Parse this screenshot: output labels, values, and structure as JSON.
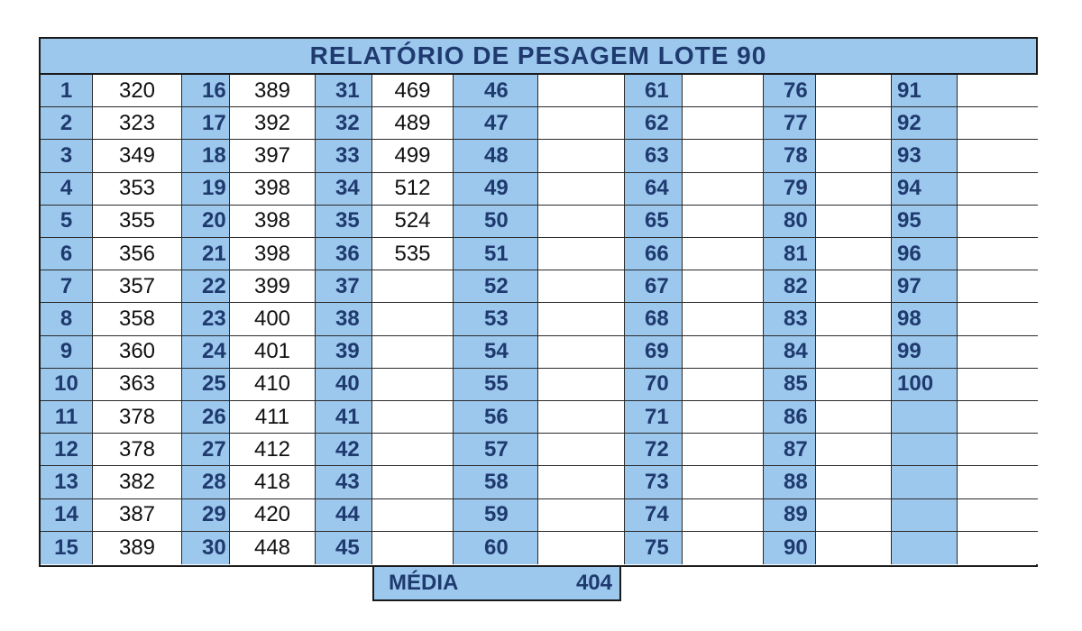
{
  "title": "RELATÓRIO DE PESAGEM LOTE 90",
  "colors": {
    "header_blue": "#9cc8ee",
    "label_navy": "#1f3a6e",
    "border": "#1a1a1a"
  },
  "groups": [
    {
      "numbers": [
        "1",
        "2",
        "3",
        "4",
        "5",
        "6",
        "7",
        "8",
        "9",
        "10",
        "11",
        "12",
        "13",
        "14",
        "15"
      ],
      "values": [
        "320",
        "323",
        "349",
        "353",
        "355",
        "356",
        "357",
        "358",
        "360",
        "363",
        "378",
        "378",
        "382",
        "387",
        "389"
      ]
    },
    {
      "numbers": [
        "16",
        "17",
        "18",
        "19",
        "20",
        "21",
        "22",
        "23",
        "24",
        "25",
        "26",
        "27",
        "28",
        "29",
        "30"
      ],
      "values": [
        "389",
        "392",
        "397",
        "398",
        "398",
        "398",
        "399",
        "400",
        "401",
        "410",
        "411",
        "412",
        "418",
        "420",
        "448"
      ]
    },
    {
      "numbers": [
        "31",
        "32",
        "33",
        "34",
        "35",
        "36",
        "37",
        "38",
        "39",
        "40",
        "41",
        "42",
        "43",
        "44",
        "45"
      ],
      "values": [
        "469",
        "489",
        "499",
        "512",
        "524",
        "535",
        "",
        "",
        "",
        "",
        "",
        "",
        "",
        "",
        ""
      ]
    },
    {
      "numbers": [
        "46",
        "47",
        "48",
        "49",
        "50",
        "51",
        "52",
        "53",
        "54",
        "55",
        "56",
        "57",
        "58",
        "59",
        "60"
      ],
      "values": [
        "",
        "",
        "",
        "",
        "",
        "",
        "",
        "",
        "",
        "",
        "",
        "",
        "",
        "",
        ""
      ]
    },
    {
      "numbers": [
        "61",
        "62",
        "63",
        "64",
        "65",
        "66",
        "67",
        "68",
        "69",
        "70",
        "71",
        "72",
        "73",
        "74",
        "75"
      ],
      "values": [
        "",
        "",
        "",
        "",
        "",
        "",
        "",
        "",
        "",
        "",
        "",
        "",
        "",
        "",
        ""
      ]
    },
    {
      "numbers": [
        "76",
        "77",
        "78",
        "79",
        "80",
        "81",
        "82",
        "83",
        "84",
        "85",
        "86",
        "87",
        "88",
        "89",
        "90"
      ],
      "values": [
        "",
        "",
        "",
        "",
        "",
        "",
        "",
        "",
        "",
        "",
        "",
        "",
        "",
        "",
        ""
      ]
    },
    {
      "numbers": [
        "91",
        "92",
        "93",
        "94",
        "95",
        "96",
        "97",
        "98",
        "99",
        "100",
        "",
        "",
        "",
        "",
        ""
      ],
      "values": [
        "",
        "",
        "",
        "",
        "",
        "",
        "",
        "",
        "",
        "",
        "",
        "",
        "",
        "",
        ""
      ]
    }
  ],
  "average": {
    "label": "MÉDIA",
    "value": "404"
  }
}
